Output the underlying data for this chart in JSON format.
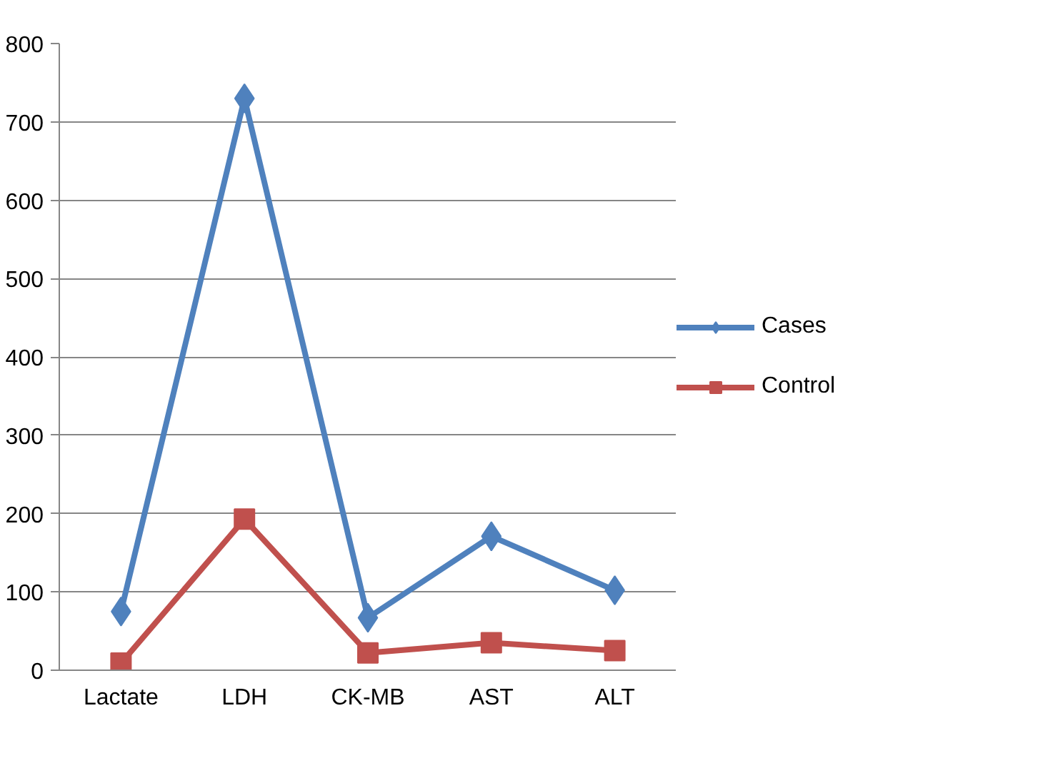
{
  "chart_data": {
    "type": "line",
    "categories": [
      "Lactate",
      "LDH",
      "CK-MB",
      "AST",
      "ALT"
    ],
    "series": [
      {
        "name": "Cases",
        "color": "#4f81bd",
        "marker": "diamond",
        "values": [
          75,
          730,
          67,
          171,
          102
        ]
      },
      {
        "name": "Control",
        "color": "#c0504d",
        "marker": "square",
        "values": [
          9,
          193,
          22,
          35,
          25
        ]
      }
    ],
    "ylim": [
      0,
      800
    ],
    "yticks": [
      0,
      100,
      200,
      300,
      400,
      500,
      600,
      700,
      800
    ],
    "grid": "y",
    "legend": "right",
    "line_style": "solid"
  }
}
